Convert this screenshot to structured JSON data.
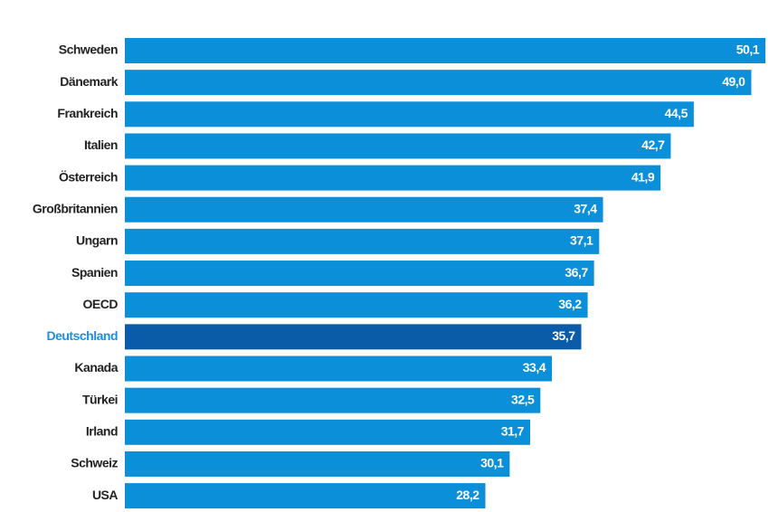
{
  "chart_data": {
    "type": "hbar",
    "categories": [
      "Schweden",
      "Dänemark",
      "Frankreich",
      "Italien",
      "Österreich",
      "Großbritannien",
      "Ungarn",
      "Spanien",
      "OECD",
      "Deutschland",
      "Kanada",
      "Türkei",
      "Irland",
      "Schweiz",
      "USA"
    ],
    "values": [
      50.1,
      49.0,
      44.5,
      42.7,
      41.9,
      37.4,
      37.1,
      36.7,
      36.2,
      35.7,
      33.4,
      32.5,
      31.7,
      30.1,
      28.2
    ],
    "value_labels": [
      "50,1",
      "49,0",
      "44,5",
      "42,7",
      "41,9",
      "37,4",
      "37,1",
      "36,7",
      "36,2",
      "35,7",
      "33,4",
      "32,5",
      "31,7",
      "30,1",
      "28,2"
    ],
    "color": "#0b8fd8",
    "colors": [
      "#0b8fd8",
      "#0b8fd8",
      "#0b8fd8",
      "#0b8fd8",
      "#0b8fd8",
      "#0b8fd8",
      "#0b8fd8",
      "#0b8fd8",
      "#0b8fd8",
      "#0a5ca8",
      "#0b8fd8",
      "#0b8fd8",
      "#0b8fd8",
      "#0b8fd8",
      "#0b8fd8"
    ]
  }
}
